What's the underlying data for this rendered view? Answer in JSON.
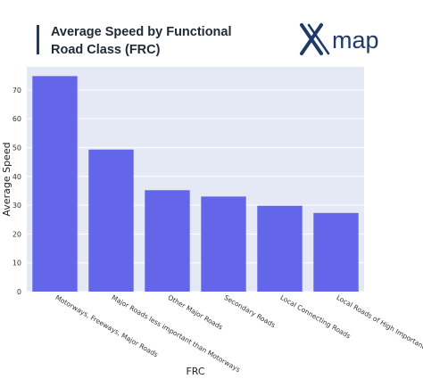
{
  "header": {
    "title": "Average Speed by Functional Road Class (FRC)",
    "logo_text": "map",
    "accent_color": "#1f3a68"
  },
  "chart_data": {
    "type": "bar",
    "categories": [
      "Motorways, Freeways, Major Roads",
      "Major Roads less important than Motorways",
      "Other Major Roads",
      "Secondary Roads",
      "Local Connecting Roads",
      "Local Roads of High Importance"
    ],
    "values": [
      74.8,
      49.3,
      35.2,
      33.0,
      29.8,
      27.3
    ],
    "xlabel": "FRC",
    "ylabel": "Average Speed",
    "ylim": [
      0,
      78
    ],
    "yticks": [
      0,
      10,
      20,
      30,
      40,
      50,
      60,
      70
    ],
    "grid": true,
    "bar_color": "#6366e8",
    "plot_background": "#e5e8f5"
  }
}
